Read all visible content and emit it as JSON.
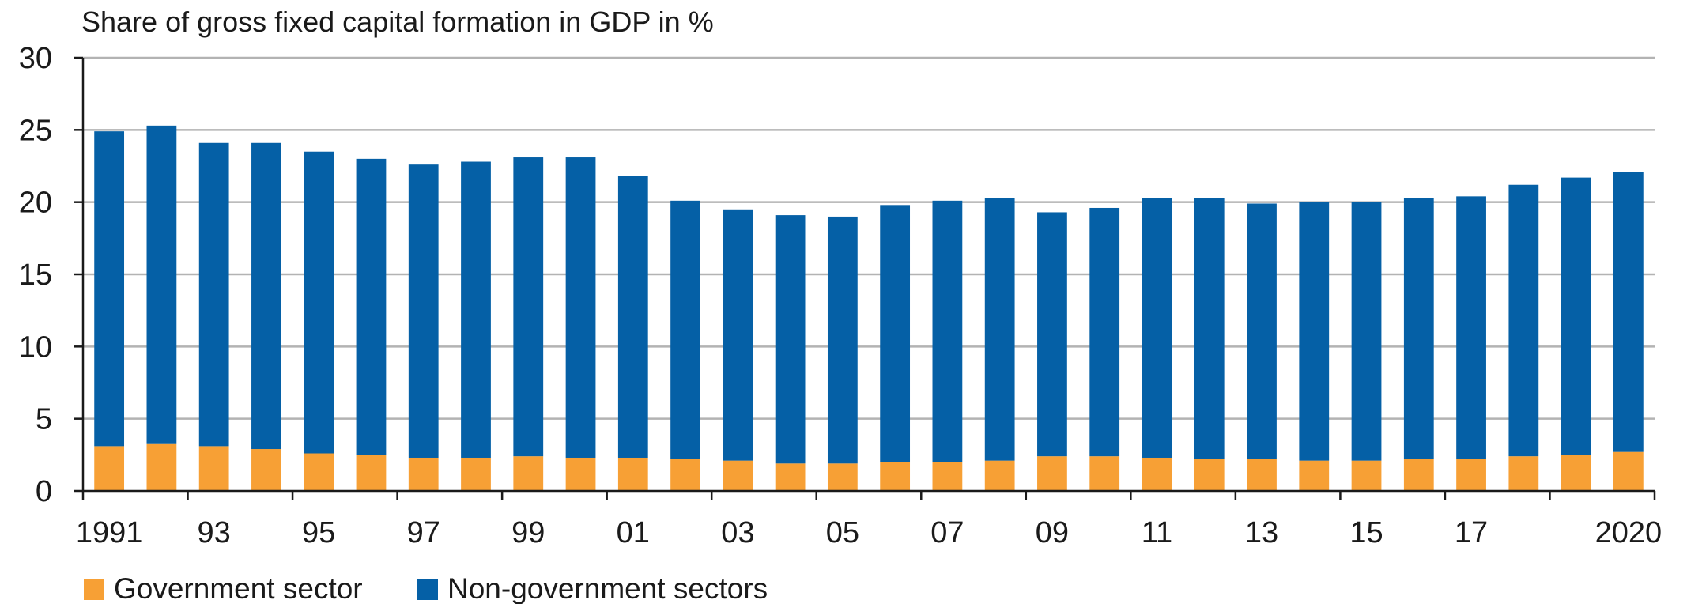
{
  "chart_data": {
    "type": "bar",
    "stacked": true,
    "title": "Share of gross fixed capital formation in GDP in %",
    "xlabel": "",
    "ylabel": "",
    "ylim": [
      0,
      30
    ],
    "yticks": [
      0,
      5,
      10,
      15,
      20,
      25,
      30
    ],
    "grid": true,
    "legend_placement": "bottom-left",
    "categories": [
      "1991",
      "1992",
      "1993",
      "1994",
      "1995",
      "1996",
      "1997",
      "1998",
      "1999",
      "2000",
      "2001",
      "2002",
      "2003",
      "2004",
      "2005",
      "2006",
      "2007",
      "2008",
      "2009",
      "2010",
      "2011",
      "2012",
      "2013",
      "2014",
      "2015",
      "2016",
      "2017",
      "2018",
      "2019",
      "2020"
    ],
    "tick_labels": [
      "1991",
      "",
      "93",
      "",
      "95",
      "",
      "97",
      "",
      "99",
      "",
      "01",
      "",
      "03",
      "",
      "05",
      "",
      "07",
      "",
      "09",
      "",
      "11",
      "",
      "13",
      "",
      "15",
      "",
      "17",
      "",
      "",
      "2020"
    ],
    "series": [
      {
        "name": "Government sector",
        "color": "#f7a035",
        "values": [
          3.1,
          3.3,
          3.1,
          2.9,
          2.6,
          2.5,
          2.3,
          2.3,
          2.4,
          2.3,
          2.3,
          2.2,
          2.1,
          1.9,
          1.9,
          2.0,
          2.0,
          2.1,
          2.4,
          2.4,
          2.3,
          2.2,
          2.2,
          2.1,
          2.1,
          2.2,
          2.2,
          2.4,
          2.5,
          2.7
        ]
      },
      {
        "name": "Non-government sectors",
        "color": "#0560a6",
        "values": [
          21.8,
          22.0,
          21.0,
          21.2,
          20.9,
          20.5,
          20.3,
          20.5,
          20.7,
          20.8,
          19.5,
          17.9,
          17.4,
          17.2,
          17.1,
          17.8,
          18.1,
          18.2,
          16.9,
          17.2,
          18.0,
          18.1,
          17.7,
          17.9,
          17.9,
          18.1,
          18.2,
          18.8,
          19.2,
          19.4
        ]
      }
    ]
  }
}
